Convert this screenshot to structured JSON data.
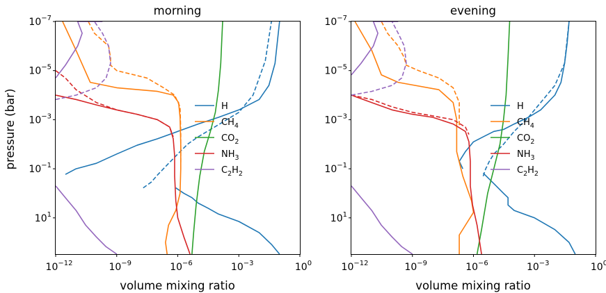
{
  "chart_data": [
    {
      "type": "line",
      "title": "morning",
      "xlabel": "volume mixing ratio",
      "ylabel": "pressure (bar)",
      "x_scale": "log",
      "y_scale": "log",
      "y_inverted": true,
      "xlim": [
        1e-12,
        1
      ],
      "ylim": [
        300,
        1e-07
      ],
      "x_ticks": [
        {
          "value": 1e-12,
          "base": "10",
          "exp": "−12"
        },
        {
          "value": 1e-09,
          "base": "10",
          "exp": "−9"
        },
        {
          "value": 1e-06,
          "base": "10",
          "exp": "−6"
        },
        {
          "value": 0.001,
          "base": "10",
          "exp": "−3"
        },
        {
          "value": 1,
          "base": "10",
          "exp": "0"
        }
      ],
      "y_ticks": [
        {
          "value": 1e-07,
          "base": "10",
          "exp": "−7"
        },
        {
          "value": 1e-05,
          "base": "10",
          "exp": "−5"
        },
        {
          "value": 0.001,
          "base": "10",
          "exp": "−3"
        },
        {
          "value": 0.1,
          "base": "10",
          "exp": "−1"
        },
        {
          "value": 10,
          "base": "10",
          "exp": "1"
        }
      ],
      "legend_position": "right",
      "series": [
        {
          "name": "H",
          "color": "#1f77b4",
          "style": "solid",
          "x": [
            3e-12,
            1e-11,
            1e-10,
            1e-09,
            1e-08,
            1e-07,
            1e-06,
            1e-05,
            0.0001,
            0.001,
            0.01,
            0.03,
            0.06,
            0.1
          ],
          "y": [
            0.17,
            0.1,
            0.06,
            0.025,
            0.011,
            0.006,
            0.003,
            0.0015,
            0.0008,
            0.0004,
            0.00015,
            4e-05,
            5e-06,
            1e-07
          ]
        },
        {
          "name": "H",
          "color": "#1f77b4",
          "style": "dashed",
          "x": [
            2e-08,
            5e-08,
            1e-07,
            3e-07,
            1e-06,
            3e-06,
            1e-05,
            0.0001,
            0.001,
            0.005,
            0.01,
            0.02,
            0.04
          ],
          "y": [
            0.6,
            0.35,
            0.18,
            0.07,
            0.025,
            0.01,
            0.005,
            0.0016,
            0.0005,
            0.0001,
            2e-05,
            4e-06,
            1e-07
          ]
        },
        {
          "name": "H",
          "color": "#1f77b4",
          "style": "solid",
          "x": [
            8e-07,
            2e-06,
            5e-06,
            1e-05,
            3e-05,
            0.0001,
            0.001,
            0.01,
            0.04,
            0.1
          ],
          "y": [
            0.6,
            1,
            1.5,
            2.5,
            4,
            7,
            14,
            40,
            120,
            300
          ]
        },
        {
          "name": "CH4",
          "color": "#ff7f0e",
          "style": "solid",
          "x": [
            2.2e-12,
            1e-11,
            5e-11,
            1e-09,
            1e-07,
            6e-07,
            1.1e-06,
            1.3e-06,
            1.4e-06,
            1.4e-06,
            1.3e-06,
            8e-07,
            3.5e-07,
            2.5e-07,
            3e-07
          ],
          "y": [
            1e-07,
            1.5e-06,
            3e-05,
            5e-05,
            7e-05,
            0.0001,
            0.0002,
            0.0008,
            0.01,
            0.1,
            1,
            5,
            20,
            100,
            300
          ]
        },
        {
          "name": "CH4",
          "color": "#ff7f0e",
          "style": "dashed",
          "x": [
            4e-11,
            8e-11,
            4e-10,
            5e-10,
            5e-10,
            1e-09,
            3e-08,
            2e-07,
            7e-07,
            1.3e-06,
            1.4e-06,
            1.4e-06
          ],
          "y": [
            1e-07,
            3e-07,
            1e-06,
            3e-06,
            6e-06,
            1e-05,
            2e-05,
            5e-05,
            0.0001,
            0.0003,
            0.003,
            0.06
          ]
        },
        {
          "name": "CO2",
          "color": "#2ca02c",
          "style": "solid",
          "x": [
            5e-06,
            6e-06,
            8e-06,
            1.2e-05,
            2e-05,
            4e-05,
            7e-05,
            0.0001,
            0.00013,
            0.00015,
            0.00016
          ],
          "y": [
            300,
            40,
            3,
            0.2,
            0.02,
            0.003,
            0.0005,
            6e-05,
            5e-06,
            3e-07,
            1e-07
          ]
        },
        {
          "name": "NH3",
          "color": "#d62728",
          "style": "solid",
          "x": [
            1e-12,
            1e-11,
            1e-10,
            1e-09,
            1e-08,
            1e-07,
            4e-07,
            6e-07,
            7e-07,
            7e-07,
            8e-07,
            1e-06,
            2e-06,
            4e-06
          ],
          "y": [
            0.0001,
            0.00015,
            0.00025,
            0.0004,
            0.0006,
            0.001,
            0.002,
            0.006,
            0.03,
            0.2,
            2,
            10,
            60,
            300
          ]
        },
        {
          "name": "NH3",
          "color": "#d62728",
          "style": "dashed",
          "x": [
            1e-12,
            3e-12,
            1e-11,
            1e-10,
            1e-09,
            1e-08,
            1e-07,
            4e-07,
            6e-07
          ],
          "y": [
            1e-05,
            2e-05,
            6e-05,
            0.0002,
            0.0004,
            0.0006,
            0.001,
            0.002,
            0.005
          ]
        },
        {
          "name": "C2H2",
          "color": "#9467bd",
          "style": "solid",
          "x": [
            1e-12,
            3e-12,
            1.2e-11,
            2e-11,
            1.2e-11,
            6e-11,
            2e-10
          ],
          "y": [
            2e-05,
            6e-06,
            1e-06,
            3e-07,
            1e-07,
            1e-07,
            1e-07
          ]
        },
        {
          "name": "C2H2",
          "color": "#9467bd",
          "style": "dashed",
          "x": [
            1e-12,
            1e-11,
            1e-10,
            3e-10,
            5e-10,
            4e-10,
            2e-10,
            8e-11
          ],
          "y": [
            0.00015,
            0.0001,
            5e-05,
            2e-05,
            5e-06,
            1e-06,
            3e-07,
            1e-07
          ]
        },
        {
          "name": "C2H2",
          "color": "#9467bd",
          "style": "solid",
          "x": [
            1e-12,
            3e-12,
            1e-11,
            3e-11,
            1e-10,
            3e-10,
            1e-09
          ],
          "y": [
            0.5,
            1.5,
            5,
            20,
            60,
            150,
            300
          ]
        }
      ]
    },
    {
      "type": "line",
      "title": "evening",
      "xlabel": "volume mixing ratio",
      "ylabel": "",
      "x_scale": "log",
      "y_scale": "log",
      "y_inverted": true,
      "xlim": [
        1e-12,
        1
      ],
      "ylim": [
        300,
        1e-07
      ],
      "x_ticks": [
        {
          "value": 1e-12,
          "base": "10",
          "exp": "−12"
        },
        {
          "value": 1e-09,
          "base": "10",
          "exp": "−9"
        },
        {
          "value": 1e-06,
          "base": "10",
          "exp": "−6"
        },
        {
          "value": 0.001,
          "base": "10",
          "exp": "−3"
        },
        {
          "value": 1,
          "base": "10",
          "exp": "0"
        }
      ],
      "y_ticks": [
        {
          "value": 1e-07,
          "base": "10",
          "exp": "−7"
        },
        {
          "value": 1e-05,
          "base": "10",
          "exp": "−5"
        },
        {
          "value": 0.001,
          "base": "10",
          "exp": "−3"
        },
        {
          "value": 0.1,
          "base": "10",
          "exp": "−1"
        },
        {
          "value": 10,
          "base": "10",
          "exp": "1"
        }
      ],
      "legend_position": "right",
      "series": [
        {
          "name": "H",
          "color": "#1f77b4",
          "style": "solid",
          "x": [
            3e-07,
            2e-07,
            4e-07,
            1e-06,
            3e-06,
            1e-05,
            3e-05,
            0.0001,
            0.0005,
            0.002,
            0.01,
            0.02,
            0.03,
            0.04,
            0.05
          ],
          "y": [
            0.1,
            0.05,
            0.02,
            0.008,
            0.005,
            0.003,
            0.0025,
            0.0015,
            0.0008,
            0.0004,
            0.0001,
            3e-05,
            5e-06,
            8e-07,
            1e-07
          ]
        },
        {
          "name": "H",
          "color": "#1f77b4",
          "style": "dashed",
          "x": [
            3e-06,
            4e-06,
            6e-06,
            1e-05,
            3e-05,
            0.0001,
            0.0005,
            0.002,
            0.01,
            0.03,
            0.05
          ],
          "y": [
            0.2,
            0.1,
            0.05,
            0.025,
            0.01,
            0.003,
            0.0008,
            0.0002,
            4e-05,
            5e-06,
            1e-07
          ]
        },
        {
          "name": "H",
          "color": "#1f77b4",
          "style": "solid",
          "x": [
            3e-06,
            1e-05,
            3e-05,
            5e-05,
            5e-05,
            0.0001,
            0.001,
            0.01,
            0.05,
            0.1
          ],
          "y": [
            0.15,
            0.4,
            1,
            1.5,
            3,
            5,
            10,
            30,
            100,
            300
          ]
        },
        {
          "name": "CH4",
          "color": "#ff7f0e",
          "style": "solid",
          "x": [
            1.5e-12,
            1e-11,
            3e-11,
            2e-10,
            2e-08,
            1e-07,
            1.5e-07,
            1.5e-07,
            3e-07,
            8e-07,
            1e-06,
            5e-07,
            2e-07,
            2e-07
          ],
          "y": [
            1e-07,
            1.5e-06,
            1.5e-05,
            3e-05,
            6e-05,
            0.0002,
            0.001,
            0.02,
            0.2,
            2,
            6,
            15,
            50,
            300
          ]
        },
        {
          "name": "CH4",
          "color": "#ff7f0e",
          "style": "dashed",
          "x": [
            3e-11,
            6e-11,
            2e-10,
            4e-10,
            5e-10,
            2e-09,
            2e-08,
            1e-07,
            2e-07,
            2e-07
          ],
          "y": [
            1e-07,
            3e-07,
            1e-06,
            3e-06,
            6e-06,
            1e-05,
            2e-05,
            5e-05,
            0.0002,
            0.002
          ]
        },
        {
          "name": "CO2",
          "color": "#2ca02c",
          "style": "solid",
          "x": [
            1.5e-06,
            2.5e-06,
            5e-06,
            1e-05,
            2e-05,
            3e-05,
            4e-05,
            5e-05,
            6e-05
          ],
          "y": [
            300,
            30,
            1,
            0.1,
            0.01,
            0.001,
            0.0001,
            3e-06,
            1e-07
          ]
        },
        {
          "name": "NH3",
          "color": "#d62728",
          "style": "solid",
          "x": [
            1e-12,
            1e-11,
            1e-10,
            1e-09,
            1e-08,
            1e-07,
            4e-07,
            6e-07,
            7e-07,
            7e-07,
            9e-07,
            1.5e-06,
            2.5e-06
          ],
          "y": [
            0.0001,
            0.0002,
            0.0004,
            0.0006,
            0.0008,
            0.0015,
            0.003,
            0.008,
            0.05,
            0.5,
            3,
            20,
            300
          ]
        },
        {
          "name": "NH3",
          "color": "#d62728",
          "style": "dashed",
          "x": [
            1e-12,
            1e-11,
            1e-10,
            1e-09,
            1e-08,
            1e-07,
            4e-07,
            6e-07
          ],
          "y": [
            0.0001,
            0.00015,
            0.0003,
            0.0005,
            0.0007,
            0.001,
            0.002,
            0.004
          ]
        },
        {
          "name": "C2H2",
          "color": "#9467bd",
          "style": "solid",
          "x": [
            1e-12,
            3e-12,
            1.2e-11,
            2e-11,
            1.2e-11,
            5e-11,
            2e-10
          ],
          "y": [
            1.5e-05,
            5e-06,
            1e-06,
            3e-07,
            1e-07,
            1e-07,
            1e-07
          ]
        },
        {
          "name": "C2H2",
          "color": "#9467bd",
          "style": "dashed",
          "x": [
            1e-12,
            1e-11,
            1e-10,
            3e-10,
            5e-10,
            4e-10,
            2e-10,
            1e-10
          ],
          "y": [
            0.0001,
            7e-05,
            4e-05,
            2e-05,
            5e-06,
            1e-06,
            3e-07,
            1e-07
          ]
        },
        {
          "name": "C2H2",
          "color": "#9467bd",
          "style": "solid",
          "x": [
            1e-12,
            3e-12,
            1e-11,
            3e-11,
            1e-10,
            3e-10,
            1e-09
          ],
          "y": [
            0.5,
            1.5,
            5,
            20,
            60,
            150,
            300
          ]
        }
      ]
    }
  ],
  "legend": [
    {
      "key": "H",
      "base": "H",
      "sub": "",
      "color": "#1f77b4"
    },
    {
      "key": "CH4",
      "base": "CH",
      "sub": "4",
      "color": "#ff7f0e"
    },
    {
      "key": "CO2",
      "base": "CO",
      "sub": "2",
      "color": "#2ca02c"
    },
    {
      "key": "NH3",
      "base": "NH",
      "sub": "3",
      "color": "#d62728"
    },
    {
      "key": "C2H2",
      "base": "C",
      "sub": "2",
      "base2": "H",
      "sub2": "2",
      "color": "#9467bd"
    }
  ]
}
